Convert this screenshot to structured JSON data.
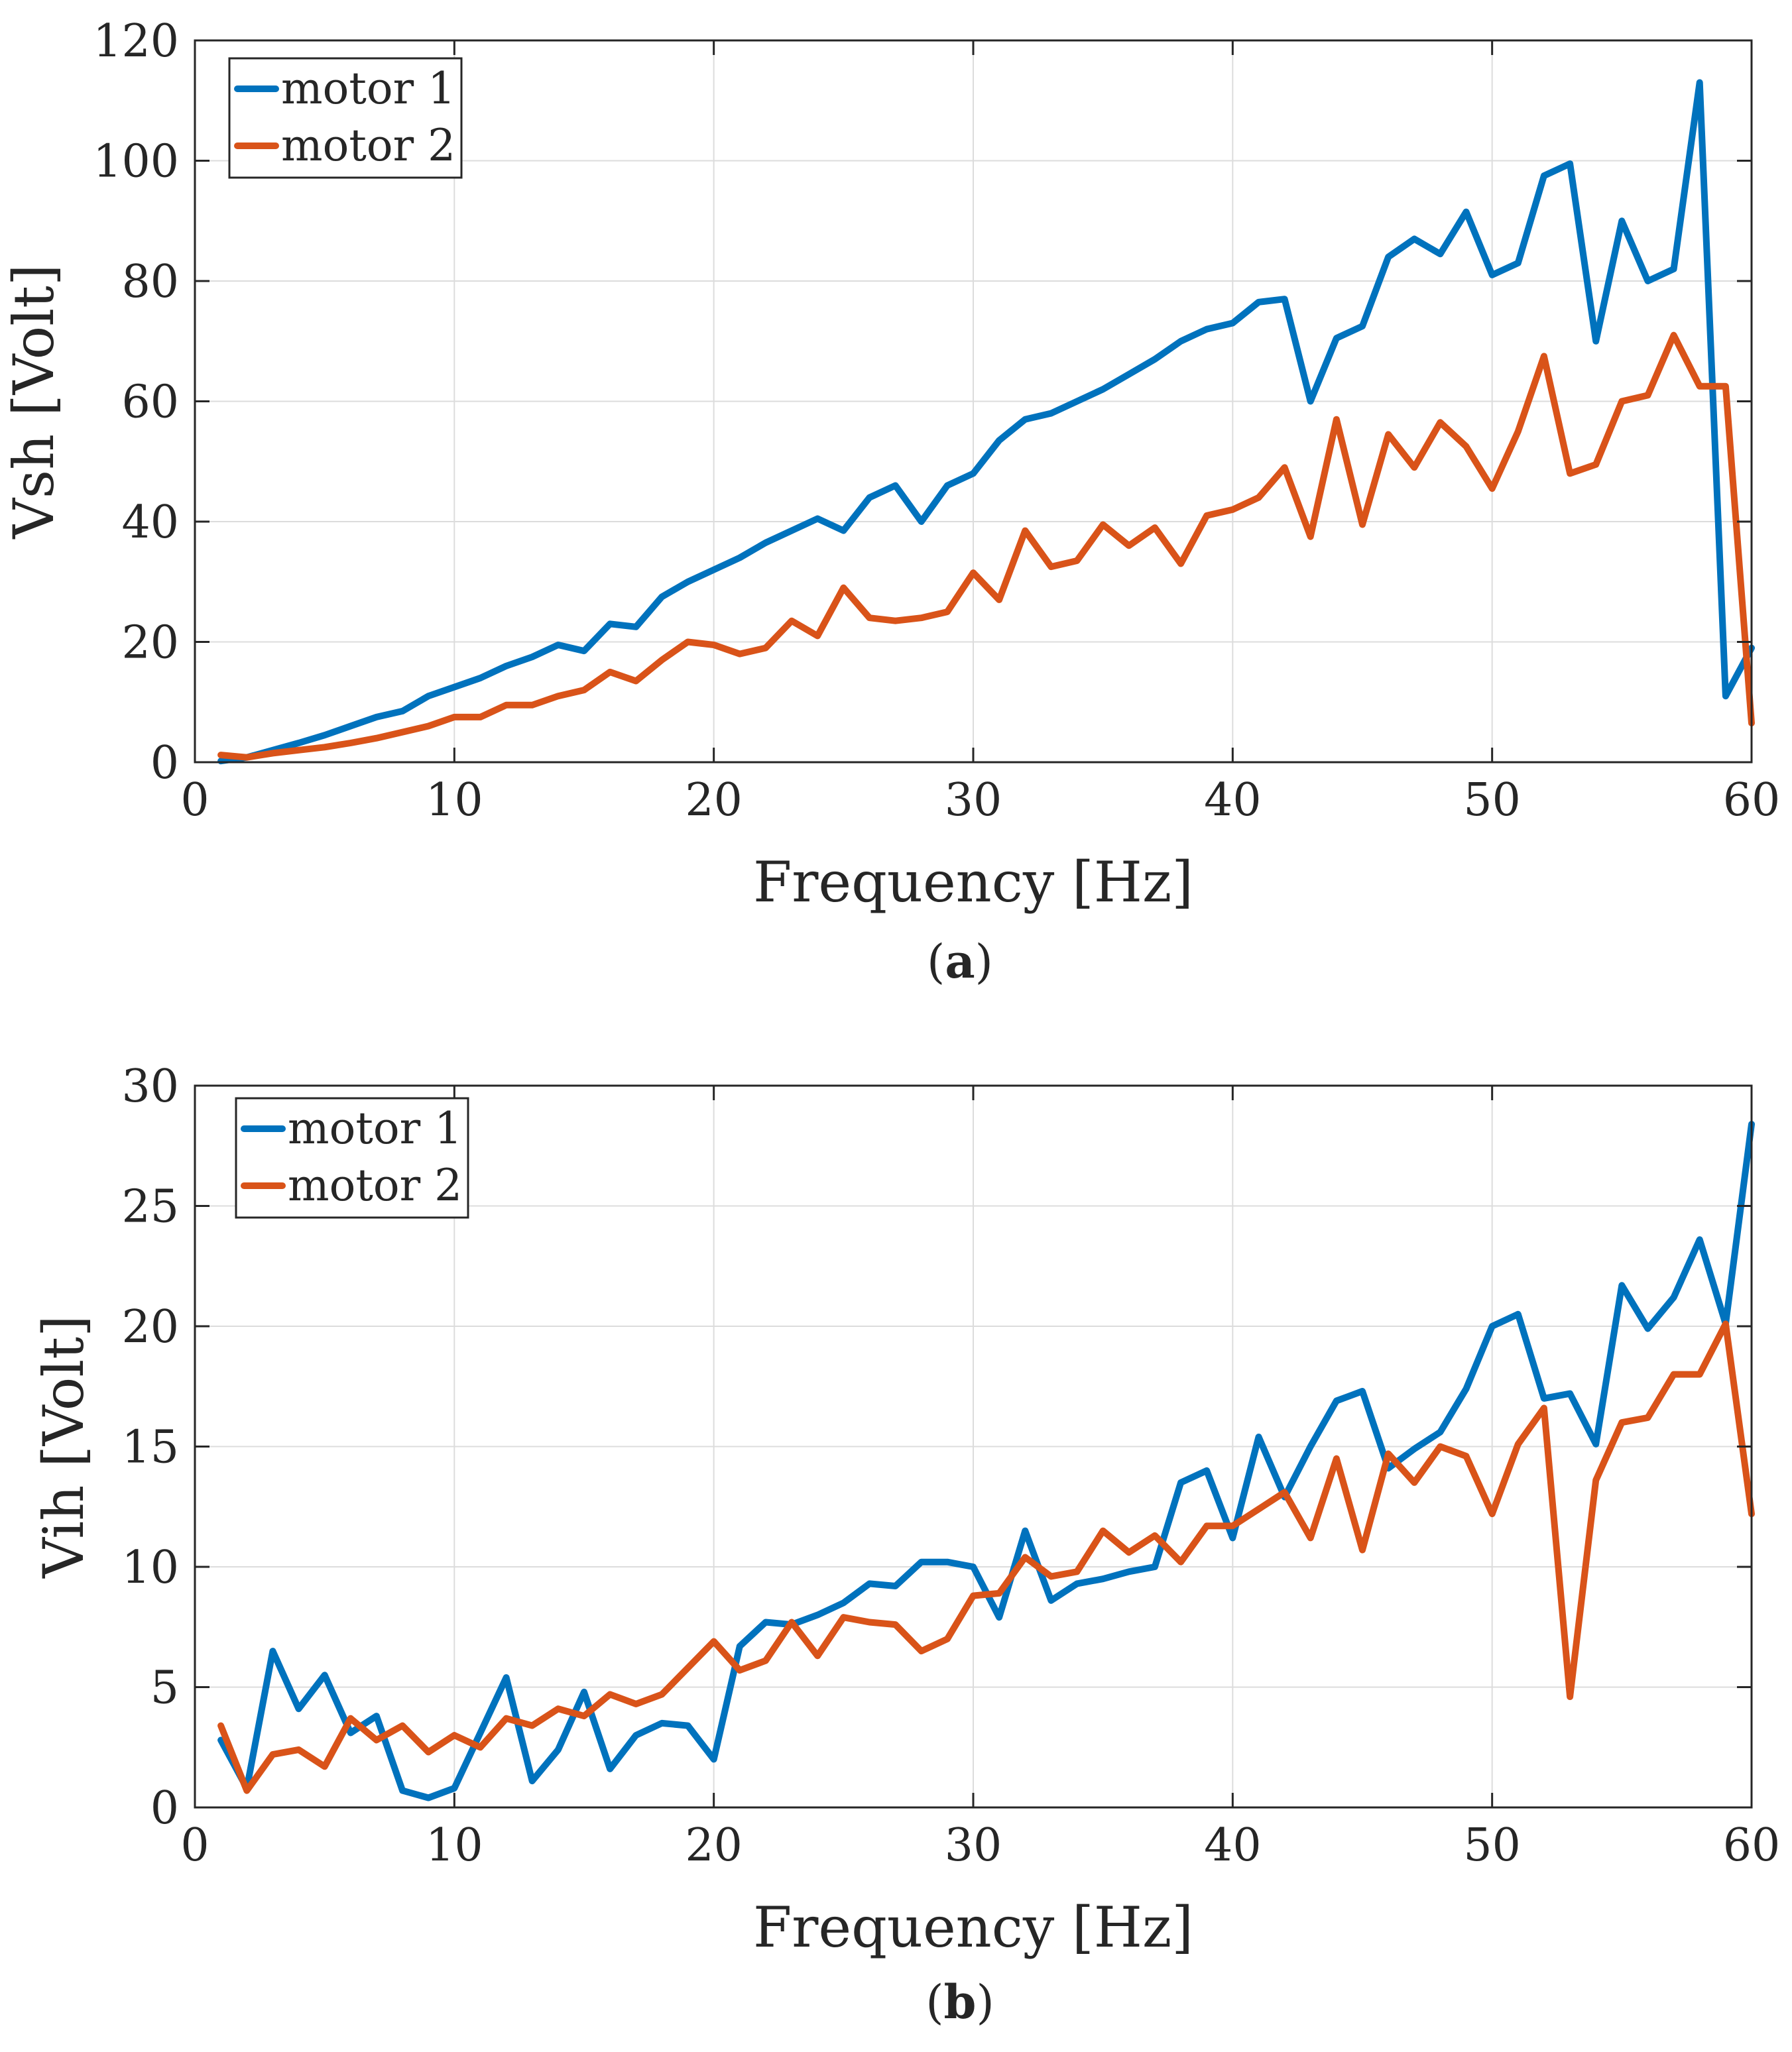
{
  "chart_data": [
    {
      "type": "line",
      "caption": "a",
      "xlabel": "Frequency [Hz]",
      "ylabel": "Vsh [Volt]",
      "xlim": [
        0,
        60
      ],
      "ylim": [
        0,
        120
      ],
      "xticks": [
        "0",
        "10",
        "20",
        "30",
        "40",
        "50",
        "60"
      ],
      "yticks": [
        "0",
        "20",
        "40",
        "60",
        "80",
        "100",
        "120"
      ],
      "grid": true,
      "legend_position": "top-left",
      "x": [
        1,
        2,
        3,
        4,
        5,
        6,
        7,
        8,
        9,
        10,
        11,
        12,
        13,
        14,
        15,
        16,
        17,
        18,
        19,
        20,
        21,
        22,
        23,
        24,
        25,
        26,
        27,
        28,
        29,
        30,
        31,
        32,
        33,
        34,
        35,
        36,
        37,
        38,
        39,
        40,
        41,
        42,
        43,
        44,
        45,
        46,
        47,
        48,
        49,
        50,
        51,
        52,
        53,
        54,
        55,
        56,
        57,
        58,
        59,
        60
      ],
      "series": [
        {
          "name": "motor 1",
          "color": "#0072BD",
          "values": [
            0.2,
            0.8,
            2,
            3.2,
            4.5,
            6,
            7.5,
            8.5,
            11,
            12.5,
            14,
            16,
            17.5,
            19.5,
            18.5,
            23,
            22.5,
            27.5,
            30,
            32,
            34,
            36.5,
            38.5,
            40.5,
            38.5,
            44,
            46,
            40,
            46,
            48,
            53.5,
            57,
            58,
            60,
            62,
            64.5,
            67,
            70,
            72,
            73,
            76.5,
            77,
            60,
            70.5,
            72.5,
            84,
            87,
            84.5,
            91.5,
            81,
            83,
            97.5,
            99.5,
            70,
            90,
            80,
            82,
            113,
            11,
            19
          ]
        },
        {
          "name": "motor 2",
          "color": "#D95319",
          "values": [
            1.2,
            0.8,
            1.5,
            2,
            2.5,
            3.2,
            4,
            5,
            6,
            7.5,
            7.5,
            9.5,
            9.5,
            11,
            12,
            15,
            13.5,
            17,
            20,
            19.5,
            18,
            19,
            23.5,
            21,
            29,
            24,
            23.5,
            24,
            25,
            31.5,
            27,
            38.5,
            32.5,
            33.5,
            39.5,
            36,
            39,
            33,
            41,
            42,
            44,
            49,
            37.5,
            57,
            39.5,
            54.5,
            49,
            56.5,
            52.5,
            45.5,
            55,
            67.5,
            48,
            49.5,
            60,
            61,
            71,
            62.5,
            62.5,
            6.5
          ]
        }
      ]
    },
    {
      "type": "line",
      "caption": "b",
      "xlabel": "Frequency [Hz]",
      "ylabel": "Vih [Volt]",
      "xlim": [
        0,
        60
      ],
      "ylim": [
        0,
        30
      ],
      "xticks": [
        "0",
        "10",
        "20",
        "30",
        "40",
        "50",
        "60"
      ],
      "yticks": [
        "0",
        "5",
        "10",
        "15",
        "20",
        "25",
        "30"
      ],
      "grid": true,
      "legend_position": "top-left",
      "x": [
        1,
        2,
        3,
        4,
        5,
        6,
        7,
        8,
        9,
        10,
        11,
        12,
        13,
        14,
        15,
        16,
        17,
        18,
        19,
        20,
        21,
        22,
        23,
        24,
        25,
        26,
        27,
        28,
        29,
        30,
        31,
        32,
        33,
        34,
        35,
        36,
        37,
        38,
        39,
        40,
        41,
        42,
        43,
        44,
        45,
        46,
        47,
        48,
        49,
        50,
        51,
        52,
        53,
        54,
        55,
        56,
        57,
        58,
        59,
        60
      ],
      "series": [
        {
          "name": "motor 1",
          "color": "#0072BD",
          "values": [
            2.8,
            0.8,
            6.5,
            4.1,
            5.5,
            3.1,
            3.8,
            0.7,
            0.4,
            0.8,
            3.1,
            5.4,
            1.1,
            2.4,
            4.8,
            1.6,
            3,
            3.5,
            3.4,
            2,
            6.7,
            7.7,
            7.6,
            8,
            8.5,
            9.3,
            9.2,
            10.2,
            10.2,
            10,
            7.9,
            11.5,
            8.6,
            9.3,
            9.5,
            9.8,
            10,
            13.5,
            14,
            11.2,
            15.4,
            12.9,
            15,
            16.9,
            17.3,
            14.1,
            14.9,
            15.6,
            17.4,
            20,
            20.5,
            17,
            17.2,
            15.1,
            21.7,
            19.9,
            21.2,
            23.6,
            20.1,
            28.4
          ]
        },
        {
          "name": "motor 2",
          "color": "#D95319",
          "values": [
            3.4,
            0.7,
            2.2,
            2.4,
            1.7,
            3.7,
            2.8,
            3.4,
            2.3,
            3,
            2.5,
            3.7,
            3.4,
            4.1,
            3.8,
            4.7,
            4.3,
            4.7,
            5.8,
            6.9,
            5.7,
            6.1,
            7.7,
            6.3,
            7.9,
            7.7,
            7.6,
            6.5,
            7,
            8.8,
            8.9,
            10.4,
            9.6,
            9.8,
            11.5,
            10.6,
            11.3,
            10.2,
            11.7,
            11.7,
            12.4,
            13.1,
            11.2,
            14.5,
            10.7,
            14.7,
            13.5,
            15,
            14.6,
            12.2,
            15.1,
            16.6,
            4.6,
            13.6,
            16,
            16.2,
            18,
            18,
            20.1,
            12.2
          ]
        }
      ]
    }
  ]
}
